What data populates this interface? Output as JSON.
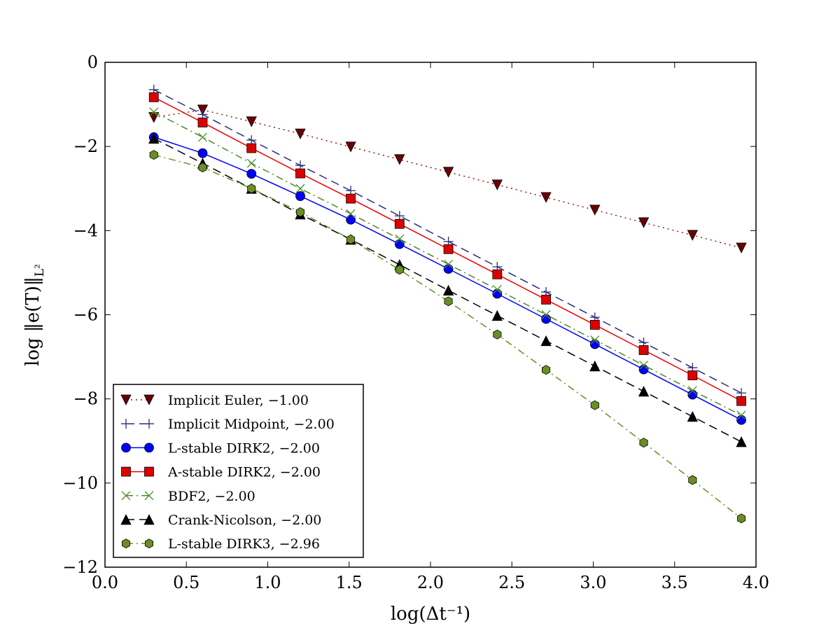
{
  "chart_data": {
    "type": "line",
    "title": "",
    "xlabel": "log(Δt⁻¹)",
    "ylabel": "log ‖e(T)‖",
    "ylabel_subscript": "L²",
    "xlim": [
      0.0,
      4.0
    ],
    "ylim": [
      -12,
      0
    ],
    "xticks": [
      "0.0",
      "0.5",
      "1.0",
      "1.5",
      "2.0",
      "2.5",
      "3.0",
      "3.5",
      "4.0"
    ],
    "yticks": [
      "0",
      "−2",
      "−4",
      "−6",
      "−8",
      "−10",
      "−12"
    ],
    "grid": false,
    "legend_position": "lower-left",
    "x": [
      0.3,
      0.6,
      0.9,
      1.2,
      1.51,
      1.81,
      2.11,
      2.41,
      2.71,
      3.01,
      3.31,
      3.61,
      3.91
    ],
    "series": [
      {
        "name": "Implicit Euler, −1.00",
        "color": "#6b0000",
        "line": "dotted",
        "linecolor": "#8b1a1a",
        "marker": "triangle-down",
        "values": [
          -1.31,
          -1.13,
          -1.41,
          -1.7,
          -2.01,
          -2.31,
          -2.61,
          -2.91,
          -3.21,
          -3.51,
          -3.81,
          -4.11,
          -4.41
        ]
      },
      {
        "name": "Implicit Midpoint, −2.00",
        "color": "#2b2b7a",
        "line": "dashed",
        "linecolor": "#2b2b7a",
        "marker": "plus",
        "values": [
          -0.65,
          -1.24,
          -1.85,
          -2.45,
          -3.05,
          -3.65,
          -4.26,
          -4.86,
          -5.46,
          -6.06,
          -6.66,
          -7.26,
          -7.86
        ]
      },
      {
        "name": "L-stable DIRK2, −2.00",
        "color": "#0000ff",
        "line": "solid",
        "linecolor": "#0000ff",
        "marker": "circle",
        "values": [
          -1.78,
          -2.16,
          -2.65,
          -3.18,
          -3.74,
          -4.32,
          -4.91,
          -5.5,
          -6.1,
          -6.7,
          -7.3,
          -7.9,
          -8.5
        ]
      },
      {
        "name": "A-stable DIRK2, −2.00",
        "color": "#dd0000",
        "line": "solid",
        "linecolor": "#ee0000",
        "marker": "square",
        "values": [
          -0.83,
          -1.43,
          -2.04,
          -2.64,
          -3.24,
          -3.84,
          -4.44,
          -5.04,
          -5.64,
          -6.24,
          -6.84,
          -7.44,
          -8.05
        ]
      },
      {
        "name": "BDF2, −2.00",
        "color": "#4a8a2a",
        "line": "dashdot",
        "linecolor": "#4a8a2a",
        "marker": "x",
        "values": [
          -1.18,
          -1.78,
          -2.4,
          -3.0,
          -3.6,
          -4.2,
          -4.8,
          -5.4,
          -6.0,
          -6.6,
          -7.2,
          -7.8,
          -8.39
        ]
      },
      {
        "name": "Crank-Nicolson, −2.00",
        "color": "#000000",
        "line": "dashed",
        "linecolor": "#000000",
        "marker": "triangle-up",
        "values": [
          -1.81,
          -2.4,
          -3.0,
          -3.61,
          -4.21,
          -4.81,
          -5.42,
          -6.02,
          -6.62,
          -7.22,
          -7.82,
          -8.42,
          -9.02
        ]
      },
      {
        "name": "L-stable DIRK3, −2.96",
        "color": "#6b8e23",
        "line": "dashdot",
        "linecolor": "#6b8e23",
        "marker": "hexagon",
        "values": [
          -2.2,
          -2.5,
          -3.0,
          -3.56,
          -4.21,
          -4.93,
          -5.68,
          -6.47,
          -7.31,
          -8.15,
          -9.04,
          -9.93,
          -10.84
        ]
      }
    ]
  }
}
